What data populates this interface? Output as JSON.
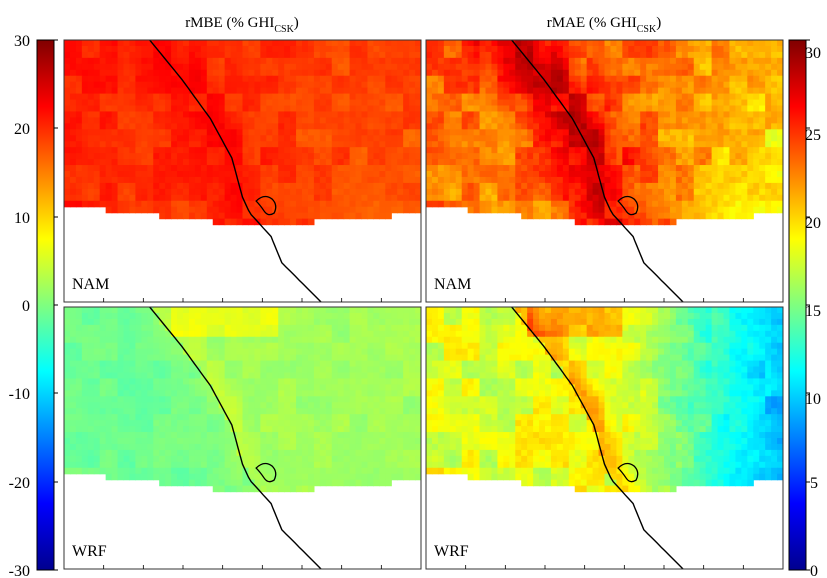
{
  "chart_data": [
    {
      "type": "heatmap",
      "title": "rMBE (% GHI",
      "title_subscript": "CSK",
      "title_close": ")",
      "colorbar": {
        "side": "left",
        "range": [
          -30,
          30
        ],
        "ticks": [
          "30",
          "20",
          "10",
          "0",
          "-10",
          "-20",
          "-30"
        ],
        "colormap": "jet"
      },
      "panels": [
        {
          "label": "NAM",
          "approx_value_range": [
            15,
            24
          ]
        },
        {
          "label": "WRF",
          "approx_value_range": [
            -4,
            5
          ]
        }
      ]
    },
    {
      "type": "heatmap",
      "title": "rMAE (% GHI",
      "title_subscript": "CSK",
      "title_close": ")",
      "colorbar": {
        "side": "right",
        "range": [
          0,
          30
        ],
        "ticks": [
          "30",
          "25",
          "20",
          "15",
          "10",
          "5",
          "0"
        ],
        "colormap": "jet"
      },
      "panels": [
        {
          "label": "NAM",
          "approx_value_range": [
            19,
            27
          ]
        },
        {
          "label": "WRF",
          "approx_value_range": [
            10,
            21
          ]
        }
      ]
    }
  ]
}
